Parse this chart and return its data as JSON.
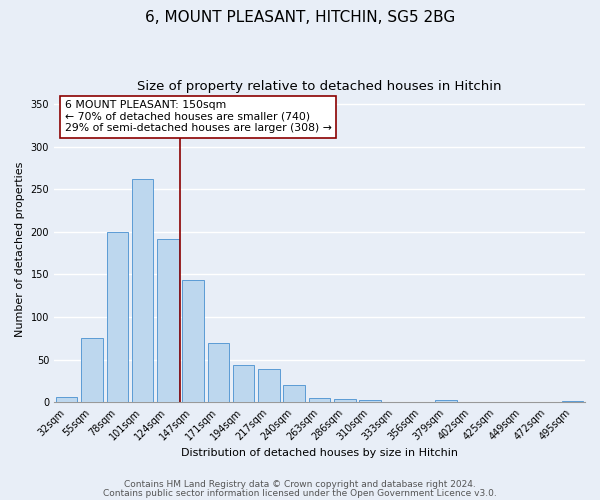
{
  "title": "6, MOUNT PLEASANT, HITCHIN, SG5 2BG",
  "subtitle": "Size of property relative to detached houses in Hitchin",
  "xlabel": "Distribution of detached houses by size in Hitchin",
  "ylabel": "Number of detached properties",
  "bar_labels": [
    "32sqm",
    "55sqm",
    "78sqm",
    "101sqm",
    "124sqm",
    "147sqm",
    "171sqm",
    "194sqm",
    "217sqm",
    "240sqm",
    "263sqm",
    "286sqm",
    "310sqm",
    "333sqm",
    "356sqm",
    "379sqm",
    "402sqm",
    "425sqm",
    "449sqm",
    "472sqm",
    "495sqm"
  ],
  "bar_values": [
    6,
    75,
    200,
    262,
    192,
    143,
    70,
    44,
    39,
    20,
    5,
    4,
    3,
    0,
    0,
    2,
    0,
    0,
    0,
    0,
    1
  ],
  "bar_color": "#bdd7ee",
  "bar_edge_color": "#5b9bd5",
  "property_line_color": "#8B0000",
  "annotation_text": "6 MOUNT PLEASANT: 150sqm\n← 70% of detached houses are smaller (740)\n29% of semi-detached houses are larger (308) →",
  "annotation_box_color": "#ffffff",
  "annotation_box_edge_color": "#8B0000",
  "ylim": [
    0,
    360
  ],
  "yticks": [
    0,
    50,
    100,
    150,
    200,
    250,
    300,
    350
  ],
  "footer_line1": "Contains HM Land Registry data © Crown copyright and database right 2024.",
  "footer_line2": "Contains public sector information licensed under the Open Government Licence v3.0.",
  "bg_color": "#e8eef7",
  "grid_color": "#ffffff",
  "title_fontsize": 11,
  "subtitle_fontsize": 9.5,
  "label_fontsize": 8,
  "tick_fontsize": 7,
  "annotation_fontsize": 7.8,
  "footer_fontsize": 6.5
}
